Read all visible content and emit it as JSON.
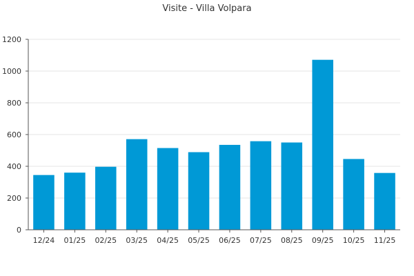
{
  "chart_data": {
    "type": "bar",
    "title": "Visite - Villa Volpara",
    "categories": [
      "12/24",
      "01/25",
      "02/25",
      "03/25",
      "04/25",
      "05/25",
      "06/25",
      "07/25",
      "08/25",
      "09/25",
      "10/25",
      "11/25"
    ],
    "values": [
      345,
      360,
      397,
      571,
      515,
      489,
      535,
      558,
      550,
      1071,
      446,
      358
    ],
    "ylim": [
      0,
      1200
    ],
    "yticks": [
      0,
      200,
      400,
      600,
      800,
      1000,
      1200
    ],
    "xlabel": "",
    "ylabel": "",
    "grid": true,
    "bar_color": "#0099d6"
  }
}
